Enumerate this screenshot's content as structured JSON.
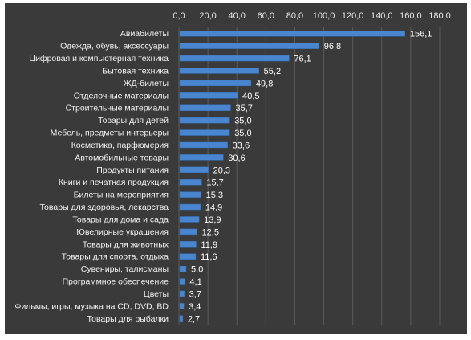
{
  "chart_data": {
    "type": "bar",
    "orientation": "horizontal",
    "title": "",
    "xlabel": "",
    "ylabel": "",
    "xlim": [
      0,
      180
    ],
    "ticks": [
      "0,0",
      "20,0",
      "40,0",
      "60,0",
      "80,0",
      "100,0",
      "120,0",
      "140,0",
      "160,0",
      "180,0"
    ],
    "tick_values": [
      0,
      20,
      40,
      60,
      80,
      100,
      120,
      140,
      160,
      180
    ],
    "grid": true,
    "axis_position": "top",
    "bar_color": "#4a86d0",
    "background_color": "#3a3a3a",
    "categories": [
      "Авиабилеты",
      "Одежда, обувь, аксессуары",
      "Цифровая и компьютерная техника",
      "Бытовая техника",
      "ЖД-билеты",
      "Отделочные материалы",
      "Строительные материалы",
      "Товары для детей",
      "Мебель, предметы интерьеры",
      "Косметика, парфюмерия",
      "Автомобильные товары",
      "Продукты питания",
      "Книги и печатная продукция",
      "Билеты на мероприятия",
      "Товары для здоровья, лекарства",
      "Товары для дома и сада",
      "Ювелирные украшения",
      "Товары для животных",
      "Товары для спорта, отдыха",
      "Сувениры, талисманы",
      "Программное обеспечение",
      "Цветы",
      "Фильмы, игры, музыка на CD, DVD, BD",
      "Товары для рыбалки"
    ],
    "values": [
      156.1,
      96.8,
      76.1,
      55.2,
      49.8,
      40.5,
      35.7,
      35.0,
      35.0,
      33.6,
      30.6,
      20.3,
      15.7,
      15.3,
      14.9,
      13.9,
      12.5,
      11.9,
      11.6,
      5.0,
      4.1,
      3.7,
      3.4,
      2.7
    ],
    "value_labels": [
      "156,1",
      "96,8",
      "76,1",
      "55,2",
      "49,8",
      "40,5",
      "35,7",
      "35,0",
      "35,0",
      "33,6",
      "30,6",
      "20,3",
      "15,7",
      "15,3",
      "14,9",
      "13,9",
      "12,5",
      "11,9",
      "11,6",
      "5,0",
      "4,1",
      "3,7",
      "3,4",
      "2,7"
    ]
  }
}
